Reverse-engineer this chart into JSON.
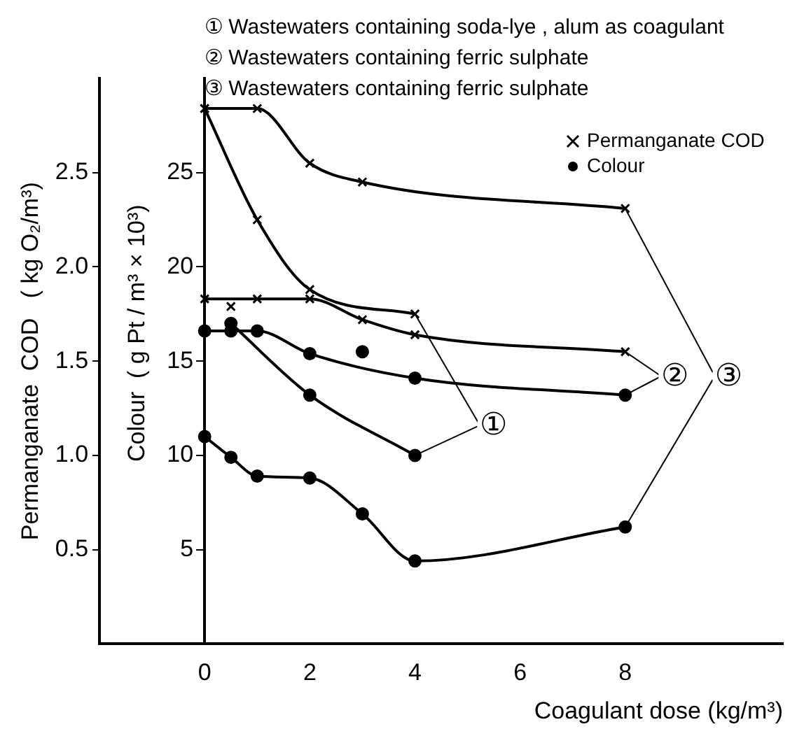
{
  "chart_data": {
    "type": "line",
    "xlabel": "Coagulant dose (kg/m³)",
    "ylabel": "Colour  ( g Pt / m³ × 10³)",
    "y2label": "Permanganate  COD   ( kg O₂/m³)",
    "xlim": [
      -2,
      11
    ],
    "xticks": [
      0,
      2,
      4,
      6,
      8
    ],
    "ylim": [
      0,
      30
    ],
    "yticks": [
      5,
      10,
      15,
      20,
      25
    ],
    "y2lim": [
      0,
      3
    ],
    "y2ticks": [
      0.5,
      {
        "value": 1,
        "label": "1.0"
      },
      1.5,
      {
        "value": 2,
        "label": "2.0"
      },
      2.5
    ],
    "grid": false,
    "legend": "top right",
    "line_style": "solid",
    "annotations": [
      "① Wastewaters containing soda-lye , alum as coagulant",
      "② Wastewaters containing ferric sulphate",
      "③ Wastewaters containing ferric sulphate",
      {
        "text": "①",
        "x": 5.5,
        "y": 11.6
      },
      {
        "text": "②",
        "x": 8.95,
        "y": 14.2
      },
      {
        "text": "③",
        "x": 9.97,
        "y": 14.2
      }
    ],
    "series": [
      {
        "axis": "y2",
        "marker": "cross",
        "color": "#000000",
        "x": [
          0,
          1,
          2,
          4
        ],
        "values": [
          2.84,
          2.25,
          1.88,
          1.75
        ]
      },
      {
        "marker": "circle",
        "color": "#000000",
        "x": [
          0.5,
          2,
          4
        ],
        "values": [
          17.0,
          13.2,
          10.0
        ]
      },
      {
        "axis": "y2",
        "marker": "cross",
        "color": "#000000",
        "x": [
          0,
          1,
          2,
          3,
          4,
          8
        ],
        "values": [
          1.83,
          1.83,
          1.83,
          1.72,
          1.64,
          1.55
        ]
      },
      {
        "marker": "circle",
        "color": "#000000",
        "x": [
          0,
          0.5,
          1,
          2,
          4,
          8
        ],
        "values": [
          16.6,
          16.6,
          16.6,
          15.4,
          14.1,
          13.2
        ]
      },
      {
        "axis": "y2",
        "marker": "cross",
        "color": "#000000",
        "name": "Permanganate COD",
        "x": [
          0,
          1,
          2,
          3,
          8
        ],
        "values": [
          2.84,
          2.84,
          2.55,
          2.45,
          2.31
        ]
      },
      {
        "marker": "circle",
        "color": "#000000",
        "name": "Colour",
        "x": [
          0,
          0.5,
          1,
          2,
          3,
          4,
          8
        ],
        "values": [
          11.0,
          9.9,
          8.9,
          8.8,
          6.9,
          4.4,
          6.2
        ]
      },
      {
        "type": "scatter",
        "marker": "circle",
        "color": "#000000",
        "x": [
          3
        ],
        "values": [
          15.5
        ]
      },
      {
        "type": "scatter",
        "axis": "y2",
        "marker": "cross",
        "color": "#000000",
        "x": [
          0.5
        ],
        "values": [
          1.79
        ]
      }
    ]
  }
}
